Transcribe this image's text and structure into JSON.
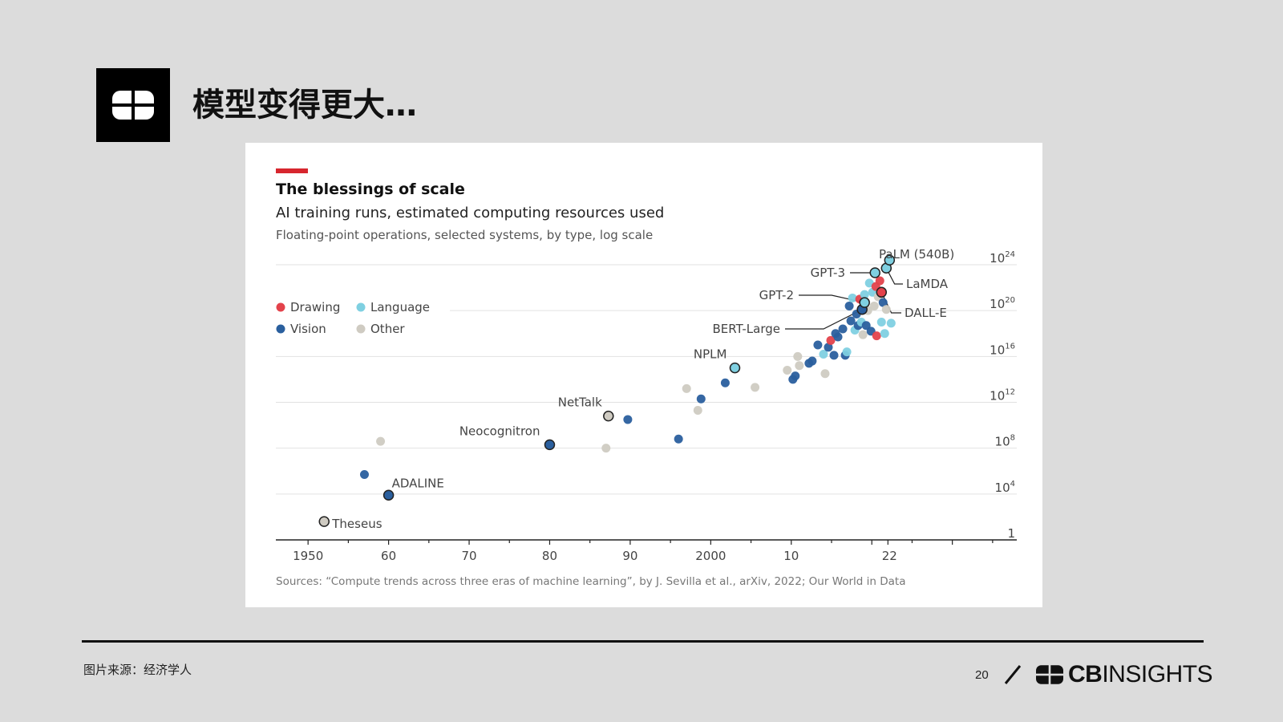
{
  "header": {
    "title": "模型变得更大…",
    "logo_icon": "cb-logo-icon"
  },
  "footer": {
    "source": "图片来源：经济学人",
    "page_number": "20",
    "brand_bold": "CB",
    "brand_light": "INSIGHTS"
  },
  "colors": {
    "Drawing": "#e3424b",
    "Language": "#7fd0e1",
    "Vision": "#2a5f9e",
    "Other": "#cfcbc2",
    "accent": "#d7262e"
  },
  "chart_data": {
    "type": "scatter",
    "title": "The blessings of scale",
    "subtitle": "AI training runs, estimated computing resources used",
    "subtitle2": "Floating-point operations, selected systems, by type, log scale",
    "source": "Sources: “Compute trends across three eras of machine learning”, by J. Sevilla et al., arXiv, 2022; Our World in Data",
    "x_ticks": [
      {
        "value": 1950,
        "label": "1950"
      },
      {
        "value": 1960,
        "label": "60"
      },
      {
        "value": 1970,
        "label": "70"
      },
      {
        "value": 1980,
        "label": "80"
      },
      {
        "value": 1990,
        "label": "90"
      },
      {
        "value": 2000,
        "label": "2000"
      },
      {
        "value": 2010,
        "label": "10"
      },
      {
        "value": 2022,
        "label": "22"
      }
    ],
    "xlim": [
      1946,
      2038
    ],
    "y_ticks": [
      {
        "value": 0,
        "base": "1",
        "exp": ""
      },
      {
        "value": 4,
        "base": "10",
        "exp": "4"
      },
      {
        "value": 8,
        "base": "10",
        "exp": "8"
      },
      {
        "value": 12,
        "base": "10",
        "exp": "12"
      },
      {
        "value": 16,
        "base": "10",
        "exp": "16"
      },
      {
        "value": 20,
        "base": "10",
        "exp": "20"
      },
      {
        "value": 24,
        "base": "10",
        "exp": "24"
      }
    ],
    "ylim": [
      0,
      25
    ],
    "y_scale": "log10",
    "legend": {
      "placement": "top-left",
      "entries": [
        "Drawing",
        "Language",
        "Vision",
        "Other"
      ]
    },
    "labeled": [
      {
        "name": "Theseus",
        "year": 1952,
        "log_flops": 1.6,
        "type": "Other"
      },
      {
        "name": "ADALINE",
        "year": 1960,
        "log_flops": 3.9,
        "type": "Vision"
      },
      {
        "name": "Neocognitron",
        "year": 1980,
        "log_flops": 8.3,
        "type": "Vision"
      },
      {
        "name": "NetTalk",
        "year": 1987.3,
        "log_flops": 10.8,
        "type": "Other"
      },
      {
        "name": "NPLM",
        "year": 2003,
        "log_flops": 15.0,
        "type": "Language"
      },
      {
        "name": "BERT-Large",
        "year": 2018.8,
        "log_flops": 20.1,
        "type": "Vision"
      },
      {
        "name": "GPT-2",
        "year": 2019.1,
        "log_flops": 20.7,
        "type": "Language"
      },
      {
        "name": "GPT-3",
        "year": 2020.4,
        "log_flops": 23.3,
        "type": "Language"
      },
      {
        "name": "LaMDA",
        "year": 2021.8,
        "log_flops": 23.7,
        "type": "Language"
      },
      {
        "name": "PaLM (540B)",
        "year": 2022.2,
        "log_flops": 24.4,
        "type": "Language"
      },
      {
        "name": "DALL-E",
        "year": 2021.2,
        "log_flops": 21.6,
        "type": "Drawing"
      }
    ],
    "points": [
      {
        "year": 1957,
        "log_flops": 5.7,
        "type": "Vision"
      },
      {
        "year": 1959,
        "log_flops": 8.6,
        "type": "Other"
      },
      {
        "year": 1987,
        "log_flops": 8.0,
        "type": "Other"
      },
      {
        "year": 1989.7,
        "log_flops": 10.5,
        "type": "Vision"
      },
      {
        "year": 1996,
        "log_flops": 8.8,
        "type": "Vision"
      },
      {
        "year": 1997,
        "log_flops": 13.2,
        "type": "Other"
      },
      {
        "year": 1998.4,
        "log_flops": 11.3,
        "type": "Other"
      },
      {
        "year": 1998.8,
        "log_flops": 12.3,
        "type": "Vision"
      },
      {
        "year": 2001.8,
        "log_flops": 13.7,
        "type": "Vision"
      },
      {
        "year": 2005.5,
        "log_flops": 13.3,
        "type": "Other"
      },
      {
        "year": 2009.5,
        "log_flops": 14.8,
        "type": "Other"
      },
      {
        "year": 2010.2,
        "log_flops": 14.0,
        "type": "Vision"
      },
      {
        "year": 2010.5,
        "log_flops": 14.3,
        "type": "Vision"
      },
      {
        "year": 2010.8,
        "log_flops": 16.0,
        "type": "Other"
      },
      {
        "year": 2011,
        "log_flops": 15.2,
        "type": "Other"
      },
      {
        "year": 2012.2,
        "log_flops": 15.4,
        "type": "Vision"
      },
      {
        "year": 2012.6,
        "log_flops": 15.6,
        "type": "Vision"
      },
      {
        "year": 2013.3,
        "log_flops": 17.0,
        "type": "Vision"
      },
      {
        "year": 2014,
        "log_flops": 16.2,
        "type": "Language"
      },
      {
        "year": 2014.2,
        "log_flops": 14.5,
        "type": "Other"
      },
      {
        "year": 2014.6,
        "log_flops": 16.8,
        "type": "Vision"
      },
      {
        "year": 2014.9,
        "log_flops": 17.4,
        "type": "Drawing"
      },
      {
        "year": 2015.3,
        "log_flops": 16.1,
        "type": "Vision"
      },
      {
        "year": 2015.5,
        "log_flops": 18.0,
        "type": "Vision"
      },
      {
        "year": 2015.8,
        "log_flops": 17.7,
        "type": "Vision"
      },
      {
        "year": 2016.4,
        "log_flops": 18.4,
        "type": "Vision"
      },
      {
        "year": 2016.7,
        "log_flops": 16.1,
        "type": "Vision"
      },
      {
        "year": 2016.9,
        "log_flops": 16.4,
        "type": "Language"
      },
      {
        "year": 2017.2,
        "log_flops": 20.4,
        "type": "Vision"
      },
      {
        "year": 2017.4,
        "log_flops": 19.1,
        "type": "Vision"
      },
      {
        "year": 2017.6,
        "log_flops": 21.1,
        "type": "Language"
      },
      {
        "year": 2017.9,
        "log_flops": 18.3,
        "type": "Language"
      },
      {
        "year": 2018.1,
        "log_flops": 19.7,
        "type": "Vision"
      },
      {
        "year": 2018.3,
        "log_flops": 18.7,
        "type": "Vision"
      },
      {
        "year": 2018.5,
        "log_flops": 21.0,
        "type": "Drawing"
      },
      {
        "year": 2018.7,
        "log_flops": 19.0,
        "type": "Language"
      },
      {
        "year": 2018.9,
        "log_flops": 17.9,
        "type": "Other"
      },
      {
        "year": 2019.1,
        "log_flops": 21.4,
        "type": "Language"
      },
      {
        "year": 2019.3,
        "log_flops": 18.7,
        "type": "Vision"
      },
      {
        "year": 2019.5,
        "log_flops": 20.0,
        "type": "Other"
      },
      {
        "year": 2019.7,
        "log_flops": 22.4,
        "type": "Language"
      },
      {
        "year": 2019.9,
        "log_flops": 18.2,
        "type": "Vision"
      },
      {
        "year": 2020.1,
        "log_flops": 21.6,
        "type": "Language"
      },
      {
        "year": 2020.3,
        "log_flops": 20.4,
        "type": "Other"
      },
      {
        "year": 2020.5,
        "log_flops": 22.1,
        "type": "Drawing"
      },
      {
        "year": 2020.6,
        "log_flops": 17.8,
        "type": "Drawing"
      },
      {
        "year": 2020.8,
        "log_flops": 21.2,
        "type": "Other"
      },
      {
        "year": 2021.0,
        "log_flops": 22.6,
        "type": "Drawing"
      },
      {
        "year": 2021.2,
        "log_flops": 19.0,
        "type": "Language"
      },
      {
        "year": 2021.4,
        "log_flops": 20.7,
        "type": "Vision"
      },
      {
        "year": 2021.6,
        "log_flops": 18.0,
        "type": "Language"
      },
      {
        "year": 2021.8,
        "log_flops": 20.1,
        "type": "Other"
      },
      {
        "year": 2022.4,
        "log_flops": 18.9,
        "type": "Language"
      }
    ]
  }
}
